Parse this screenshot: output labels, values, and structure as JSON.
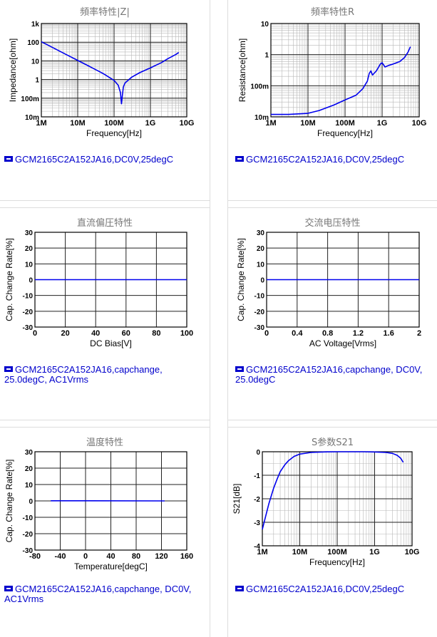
{
  "charts": [
    {
      "title": "頻率特性|Z|",
      "legend": "GCM2165C2A152JA16,DC0V,25degC",
      "chart_data": {
        "type": "line",
        "xlabel": "Frequency[Hz]",
        "ylabel": "Impedance[ohm]",
        "xscale": "log",
        "yscale": "log",
        "xlim": [
          1000000,
          10000000000
        ],
        "ylim": [
          0.01,
          1000
        ],
        "xticks": [
          {
            "v": 1000000,
            "t": "1M"
          },
          {
            "v": 10000000,
            "t": "10M"
          },
          {
            "v": 100000000,
            "t": "100M"
          },
          {
            "v": 1000000000,
            "t": "1G"
          },
          {
            "v": 10000000000,
            "t": "10G"
          }
        ],
        "yticks": [
          {
            "v": 1000,
            "t": "1k"
          },
          {
            "v": 100,
            "t": "100"
          },
          {
            "v": 10,
            "t": "10"
          },
          {
            "v": 1,
            "t": "1"
          },
          {
            "v": 0.1,
            "t": "100m"
          },
          {
            "v": 0.01,
            "t": "10m"
          }
        ],
        "series": [
          {
            "color": "#0000ee",
            "x": [
              1000000,
              2000000,
              5000000,
              10000000,
              20000000,
              50000000,
              100000000,
              130000000,
              150000000,
              160000000,
              170000000,
              180000000,
              200000000,
              300000000,
              500000000,
              1000000000,
              2000000000,
              3000000000,
              5000000000,
              6000000000
            ],
            "y": [
              106,
              53,
              21,
              10.6,
              5.3,
              2.1,
              0.9,
              0.5,
              0.2,
              0.05,
              0.15,
              0.4,
              0.65,
              1.3,
              2.3,
              4.2,
              8,
              13,
              22,
              28
            ]
          }
        ]
      }
    },
    {
      "title": "頻率特性R",
      "legend": "GCM2165C2A152JA16,DC0V,25degC",
      "chart_data": {
        "type": "line",
        "xlabel": "Frequency[Hz]",
        "ylabel": "Resistance[ohm]",
        "xscale": "log",
        "yscale": "log",
        "xlim": [
          1000000,
          10000000000
        ],
        "ylim": [
          0.01,
          10
        ],
        "xticks": [
          {
            "v": 1000000,
            "t": "1M"
          },
          {
            "v": 10000000,
            "t": "10M"
          },
          {
            "v": 100000000,
            "t": "100M"
          },
          {
            "v": 1000000000,
            "t": "1G"
          },
          {
            "v": 10000000000,
            "t": "10G"
          }
        ],
        "yticks": [
          {
            "v": 10,
            "t": "10"
          },
          {
            "v": 1,
            "t": "1"
          },
          {
            "v": 0.1,
            "t": "100m"
          },
          {
            "v": 0.01,
            "t": "10m"
          }
        ],
        "series": [
          {
            "color": "#0000ee",
            "x": [
              1000000,
              3000000,
              10000000,
              20000000,
              50000000,
              100000000,
              200000000,
              300000000,
              400000000,
              450000000,
              500000000,
              550000000,
              700000000,
              900000000,
              1000000000,
              1200000000,
              1500000000,
              2000000000,
              3000000000,
              4000000000,
              5000000000,
              5800000000
            ],
            "y": [
              0.012,
              0.012,
              0.013,
              0.016,
              0.024,
              0.035,
              0.05,
              0.08,
              0.14,
              0.25,
              0.3,
              0.22,
              0.3,
              0.5,
              0.55,
              0.4,
              0.45,
              0.5,
              0.6,
              0.8,
              1.2,
              1.8
            ]
          }
        ]
      }
    },
    {
      "title": "直流偏圧特性",
      "legend": "GCM2165C2A152JA16,capchange, 25.0degC, AC1Vrms",
      "chart_data": {
        "type": "line",
        "xlabel": "DC Bias[V]",
        "ylabel": "Cap. Change Rate[%]",
        "xscale": "linear",
        "yscale": "linear",
        "xlim": [
          0,
          100
        ],
        "ylim": [
          -30,
          30
        ],
        "xticks": [
          {
            "v": 0,
            "t": "0"
          },
          {
            "v": 20,
            "t": "20"
          },
          {
            "v": 40,
            "t": "40"
          },
          {
            "v": 60,
            "t": "60"
          },
          {
            "v": 80,
            "t": "80"
          },
          {
            "v": 100,
            "t": "100"
          }
        ],
        "yticks": [
          {
            "v": 30,
            "t": "30"
          },
          {
            "v": 20,
            "t": "20"
          },
          {
            "v": 10,
            "t": "10"
          },
          {
            "v": 0,
            "t": "0"
          },
          {
            "v": -10,
            "t": "-10"
          },
          {
            "v": -20,
            "t": "-20"
          },
          {
            "v": -30,
            "t": "-30"
          }
        ],
        "series": [
          {
            "color": "#0000ee",
            "x": [
              0,
              100
            ],
            "y": [
              0,
              0
            ]
          }
        ]
      }
    },
    {
      "title": "交流电压特性",
      "legend": "GCM2165C2A152JA16,capchange, DC0V, 25.0degC",
      "chart_data": {
        "type": "line",
        "xlabel": "AC Voltage[Vrms]",
        "ylabel": "Cap. Change Rate[%]",
        "xscale": "linear",
        "yscale": "linear",
        "xlim": [
          0,
          2
        ],
        "ylim": [
          -30,
          30
        ],
        "xticks": [
          {
            "v": 0,
            "t": "0"
          },
          {
            "v": 0.4,
            "t": "0.4"
          },
          {
            "v": 0.8,
            "t": "0.8"
          },
          {
            "v": 1.2,
            "t": "1.2"
          },
          {
            "v": 1.6,
            "t": "1.6"
          },
          {
            "v": 2,
            "t": "2"
          }
        ],
        "yticks": [
          {
            "v": 30,
            "t": "30"
          },
          {
            "v": 20,
            "t": "20"
          },
          {
            "v": 10,
            "t": "10"
          },
          {
            "v": 0,
            "t": "0"
          },
          {
            "v": -10,
            "t": "-10"
          },
          {
            "v": -20,
            "t": "-20"
          },
          {
            "v": -30,
            "t": "-30"
          }
        ],
        "series": [
          {
            "color": "#0000ee",
            "x": [
              0,
              2
            ],
            "y": [
              0,
              0
            ]
          }
        ]
      }
    },
    {
      "title": "温度特性",
      "legend": "GCM2165C2A152JA16,capchange, DC0V, AC1Vrms",
      "chart_data": {
        "type": "line",
        "xlabel": "Temperature[degC]",
        "ylabel": "Cap. Change Rate[%]",
        "xscale": "linear",
        "yscale": "linear",
        "xlim": [
          -80,
          160
        ],
        "ylim": [
          -30,
          30
        ],
        "xticks": [
          {
            "v": -80,
            "t": "-80"
          },
          {
            "v": -40,
            "t": "-40"
          },
          {
            "v": 0,
            "t": "0"
          },
          {
            "v": 40,
            "t": "40"
          },
          {
            "v": 80,
            "t": "80"
          },
          {
            "v": 120,
            "t": "120"
          },
          {
            "v": 160,
            "t": "160"
          }
        ],
        "yticks": [
          {
            "v": 30,
            "t": "30"
          },
          {
            "v": 20,
            "t": "20"
          },
          {
            "v": 10,
            "t": "10"
          },
          {
            "v": 0,
            "t": "0"
          },
          {
            "v": -10,
            "t": "-10"
          },
          {
            "v": -20,
            "t": "-20"
          },
          {
            "v": -30,
            "t": "-30"
          }
        ],
        "series": [
          {
            "color": "#0000ee",
            "x": [
              -55,
              125
            ],
            "y": [
              0.1,
              0
            ]
          }
        ]
      }
    },
    {
      "title": "S参数S21",
      "legend": "GCM2165C2A152JA16,DC0V,25degC",
      "chart_data": {
        "type": "line",
        "xlabel": "Frequency[Hz]",
        "ylabel": "S21[dB]",
        "xscale": "log",
        "yscale": "linear",
        "xlim": [
          1000000,
          10000000000
        ],
        "ylim": [
          -4,
          0
        ],
        "xticks": [
          {
            "v": 1000000,
            "t": "1M"
          },
          {
            "v": 10000000,
            "t": "10M"
          },
          {
            "v": 100000000,
            "t": "100M"
          },
          {
            "v": 1000000000,
            "t": "1G"
          },
          {
            "v": 10000000000,
            "t": "10G"
          }
        ],
        "yticks": [
          {
            "v": 0,
            "t": "0"
          },
          {
            "v": -1,
            "t": "-1"
          },
          {
            "v": -2,
            "t": "-2"
          },
          {
            "v": -3,
            "t": "-3"
          },
          {
            "v": -4,
            "t": "-4"
          }
        ],
        "series": [
          {
            "color": "#0000ee",
            "x": [
              1000000,
              1200000,
              1500000,
              2000000,
              2500000,
              3000000,
              4000000,
              5000000,
              7000000,
              10000000,
              20000000,
              50000000,
              100000000,
              500000000,
              1000000000,
              2000000000,
              3000000000,
              4000000000,
              5000000000,
              5800000000
            ],
            "y": [
              -3.3,
              -2.8,
              -2.2,
              -1.55,
              -1.15,
              -0.85,
              -0.55,
              -0.38,
              -0.2,
              -0.1,
              -0.03,
              -0.005,
              0,
              0,
              -0.01,
              -0.03,
              -0.07,
              -0.15,
              -0.28,
              -0.45
            ]
          }
        ]
      }
    }
  ]
}
